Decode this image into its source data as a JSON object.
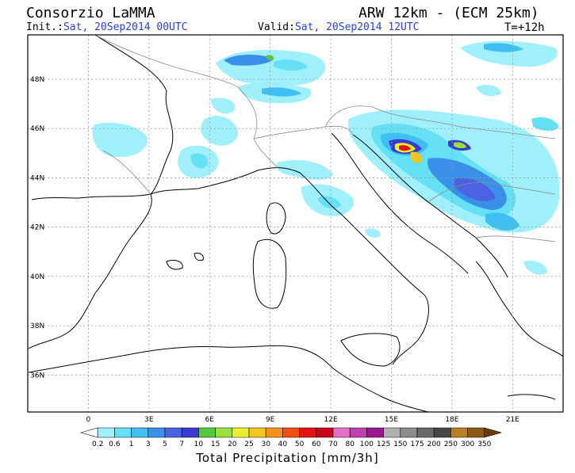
{
  "header": {
    "org": "Consorzio LaMMA",
    "model": "ARW 12km - (ECM 25km)",
    "init_label": "Init.:",
    "init_value": "Sat, 20Sep2014 00UTC",
    "valid_label": "Valid:",
    "valid_value": "Sat, 20Sep2014 12UTC",
    "step": "T=+12h"
  },
  "map": {
    "lon_ticks": [
      "0",
      "3E",
      "6E",
      "9E",
      "12E",
      "15E",
      "18E",
      "21E"
    ],
    "lat_ticks": [
      "48N",
      "46N",
      "44N",
      "42N",
      "40N",
      "38N",
      "36N"
    ],
    "lon_range": [
      -3,
      23.5
    ],
    "lat_range": [
      34.5,
      49.8
    ],
    "grid": true
  },
  "legend": {
    "title": "Total Precipitation [mm/3h]",
    "labels": [
      "0.2",
      "0.6",
      "1",
      "3",
      "5",
      "7",
      "10",
      "15",
      "20",
      "25",
      "30",
      "40",
      "50",
      "60",
      "70",
      "80",
      "100",
      "125",
      "150",
      "175",
      "200",
      "250",
      "300",
      "350"
    ],
    "colors": [
      "#ffffff",
      "#9ff0fb",
      "#66e0f5",
      "#40bff2",
      "#3a8fe8",
      "#4b63e0",
      "#3a3ad0",
      "#55c840",
      "#9be040",
      "#e8f030",
      "#f5c520",
      "#f59020",
      "#f05010",
      "#e81010",
      "#c80818",
      "#e070c8",
      "#c040b0",
      "#9a1890",
      "#b0b0b0",
      "#8c8c8c",
      "#686868",
      "#464646",
      "#b88020",
      "#8a5818",
      "#6a3a10"
    ]
  },
  "colors": {
    "coast": "#000000",
    "borders": "#8c8c8c",
    "grid": "#9a9a9a"
  }
}
